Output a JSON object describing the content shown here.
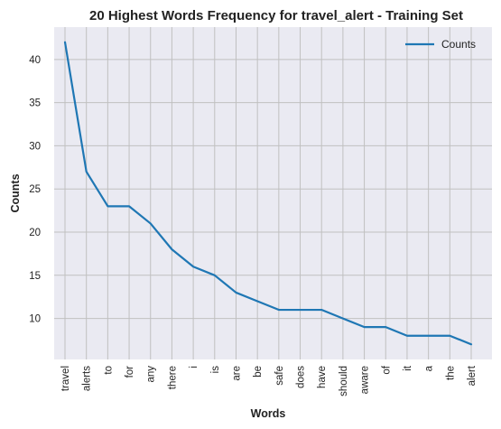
{
  "chart_data": {
    "type": "line",
    "title": "20 Highest Words Frequency for travel_alert - Training Set",
    "xlabel": "Words",
    "ylabel": "Counts",
    "categories": [
      "travel",
      "alerts",
      "to",
      "for",
      "any",
      "there",
      "i",
      "is",
      "are",
      "be",
      "safe",
      "does",
      "have",
      "should",
      "aware",
      "of",
      "it",
      "a",
      "the",
      "alert"
    ],
    "series": [
      {
        "name": "Counts",
        "values": [
          42,
          27,
          23,
          23,
          21,
          18,
          16,
          15,
          13,
          12,
          11,
          11,
          11,
          10,
          9,
          9,
          8,
          8,
          8,
          7
        ],
        "color": "#1f77b4"
      }
    ],
    "yticks": [
      10,
      15,
      20,
      25,
      30,
      35,
      40
    ],
    "ylim": [
      5.25,
      43.75
    ],
    "grid": true,
    "legend_position": "top-right",
    "colors": {
      "plot_background": "#eaeaf2",
      "grid": "#c0c0c0",
      "line": "#1f77b4",
      "text": "#222222"
    }
  }
}
